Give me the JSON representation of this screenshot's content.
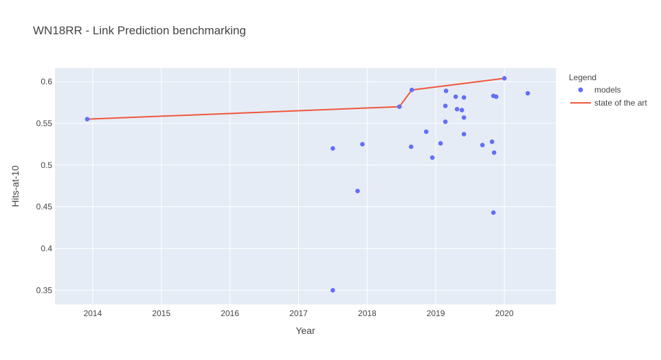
{
  "chart_data": {
    "type": "scatter",
    "title": "WN18RR - Link Prediction benchmarking",
    "xlabel": "Year",
    "ylabel": "Hits-at-10",
    "xlim": [
      2013.45,
      2020.75
    ],
    "ylim": [
      0.333,
      0.6165
    ],
    "x_ticks": [
      2014,
      2015,
      2016,
      2017,
      2018,
      2019,
      2020
    ],
    "y_ticks": [
      0.35,
      0.4,
      0.45,
      0.5,
      0.55,
      0.6
    ],
    "y_tick_labels": [
      "0.35",
      "0.4",
      "0.45",
      "0.5",
      "0.55",
      "0.6"
    ],
    "legend": {
      "title": "Legend",
      "placement": "right"
    },
    "series": [
      {
        "name": "models",
        "mode": "markers",
        "color": "#636efa",
        "points": [
          {
            "x": 2013.92,
            "y": 0.555
          },
          {
            "x": 2017.5,
            "y": 0.52
          },
          {
            "x": 2017.5,
            "y": 0.35
          },
          {
            "x": 2017.86,
            "y": 0.469
          },
          {
            "x": 2017.93,
            "y": 0.525
          },
          {
            "x": 2018.47,
            "y": 0.57
          },
          {
            "x": 2018.64,
            "y": 0.522
          },
          {
            "x": 2018.65,
            "y": 0.59
          },
          {
            "x": 2018.86,
            "y": 0.54
          },
          {
            "x": 2018.95,
            "y": 0.509
          },
          {
            "x": 2019.07,
            "y": 0.526
          },
          {
            "x": 2019.14,
            "y": 0.571
          },
          {
            "x": 2019.14,
            "y": 0.552
          },
          {
            "x": 2019.15,
            "y": 0.589
          },
          {
            "x": 2019.29,
            "y": 0.582
          },
          {
            "x": 2019.31,
            "y": 0.567
          },
          {
            "x": 2019.38,
            "y": 0.566
          },
          {
            "x": 2019.41,
            "y": 0.537
          },
          {
            "x": 2019.41,
            "y": 0.557
          },
          {
            "x": 2019.41,
            "y": 0.581
          },
          {
            "x": 2019.68,
            "y": 0.524
          },
          {
            "x": 2019.82,
            "y": 0.528
          },
          {
            "x": 2019.84,
            "y": 0.443
          },
          {
            "x": 2019.84,
            "y": 0.583
          },
          {
            "x": 2019.85,
            "y": 0.515
          },
          {
            "x": 2019.88,
            "y": 0.582
          },
          {
            "x": 2020.0,
            "y": 0.604
          },
          {
            "x": 2020.34,
            "y": 0.586
          }
        ]
      },
      {
        "name": "state of the art",
        "mode": "lines",
        "color": "#ef553b",
        "points": [
          {
            "x": 2013.92,
            "y": 0.555
          },
          {
            "x": 2018.47,
            "y": 0.57
          },
          {
            "x": 2018.65,
            "y": 0.59
          },
          {
            "x": 2020.0,
            "y": 0.604
          }
        ]
      }
    ],
    "grid": true,
    "plot_background": "#e5ecf6"
  }
}
